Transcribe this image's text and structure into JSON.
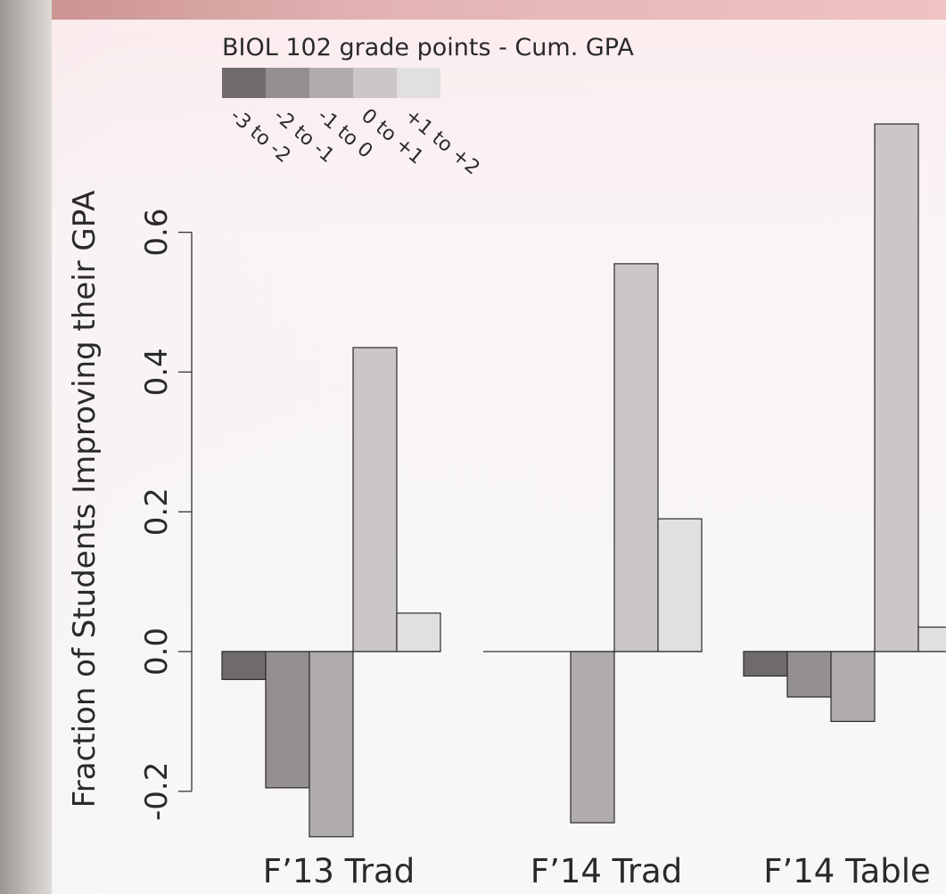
{
  "chart_data": {
    "type": "bar",
    "ylabel": "Fraction of Students Improving their GPA",
    "ylim": [
      -0.27,
      0.76
    ],
    "yticks": [
      -0.2,
      0.0,
      0.2,
      0.4,
      0.6
    ],
    "ytick_labels": [
      "-0.2",
      "0.0",
      "0.2",
      "0.4",
      "0.6"
    ],
    "categories": [
      "F’13 Trad",
      "F’14 Trad",
      "F’14 Table"
    ],
    "legend": {
      "title": "BIOL 102 grade points - Cum. GPA",
      "placement": "top-left"
    },
    "series": [
      {
        "name": "-3 to -2",
        "color": "#6f6b6b",
        "values": [
          -0.04,
          0.0,
          -0.035
        ]
      },
      {
        "name": "-2 to -1",
        "color": "#949090",
        "values": [
          -0.195,
          0.0,
          -0.065
        ]
      },
      {
        "name": "-1 to 0",
        "color": "#b0acad",
        "values": [
          -0.265,
          -0.245,
          -0.1
        ]
      },
      {
        "name": "0 to +1",
        "color": "#cbc7c8",
        "values": [
          0.435,
          0.555,
          0.755
        ]
      },
      {
        "name": "+1 to +2",
        "color": "#e2dfe0",
        "values": [
          0.055,
          0.19,
          0.035
        ]
      }
    ]
  }
}
